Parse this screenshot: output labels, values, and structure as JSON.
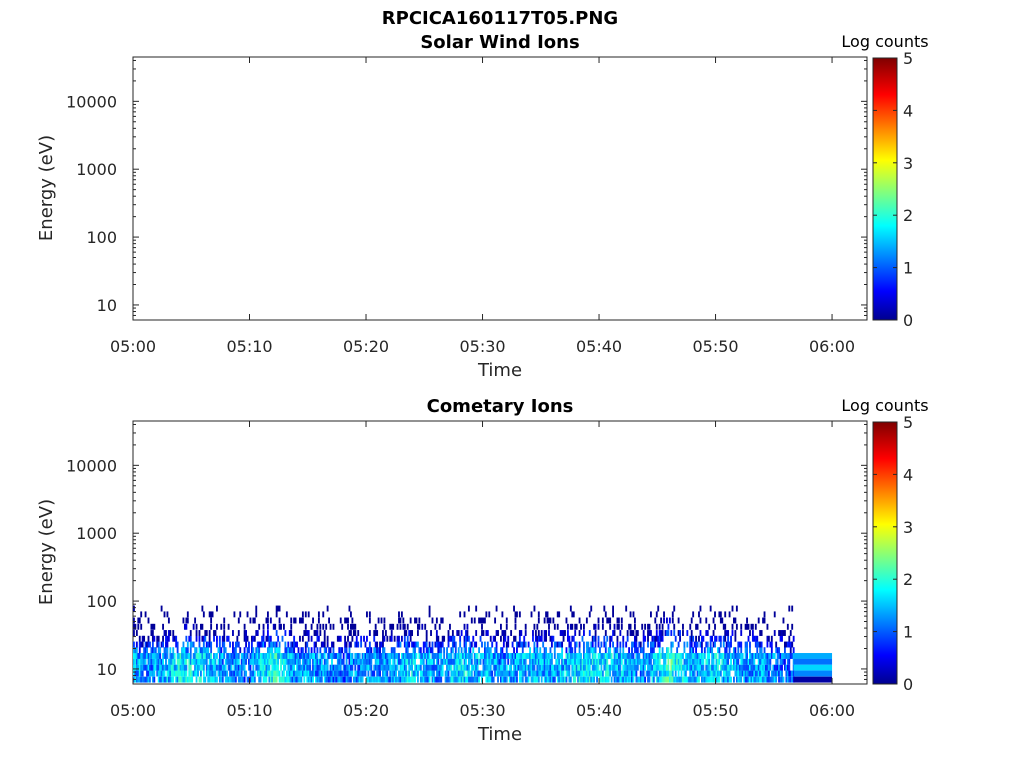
{
  "figure": {
    "title": "RPCICA160117T05.PNG"
  },
  "chart_data": [
    {
      "type": "heatmap",
      "title": "Solar Wind Ions",
      "xlabel": "Time",
      "ylabel": "Energy (eV)",
      "x_ticks": [
        "05:00",
        "05:10",
        "05:20",
        "05:30",
        "05:40",
        "05:50",
        "06:00"
      ],
      "y_ticks": [
        "10",
        "100",
        "1000",
        "10000"
      ],
      "y_scale": "log",
      "xlim_minutes": [
        0,
        63
      ],
      "ylim_eV": [
        6,
        45000
      ],
      "colorbar": {
        "title": "Log counts",
        "ticks": [
          "0",
          "1",
          "2",
          "3",
          "4",
          "5"
        ],
        "range": [
          0,
          5
        ]
      },
      "cells": []
    },
    {
      "type": "heatmap",
      "title": "Cometary Ions",
      "xlabel": "Time",
      "ylabel": "Energy (eV)",
      "x_ticks": [
        "05:00",
        "05:10",
        "05:20",
        "05:30",
        "05:40",
        "05:50",
        "06:00"
      ],
      "y_ticks": [
        "10",
        "100",
        "1000",
        "10000"
      ],
      "y_scale": "log",
      "xlim_minutes": [
        0,
        63
      ],
      "ylim_eV": [
        6,
        45000
      ],
      "colorbar": {
        "title": "Log counts",
        "ticks": [
          "0",
          "1",
          "2",
          "3",
          "4",
          "5"
        ],
        "range": [
          0,
          5
        ]
      },
      "energy_bins_eV": [
        7,
        8.6,
        10.5,
        12.8,
        15.6,
        19,
        23,
        28,
        34,
        42,
        52,
        64,
        78
      ],
      "time_profile": [
        [
          0,
          1.4
        ],
        [
          2,
          1.2
        ],
        [
          4,
          1.7
        ],
        [
          6,
          1.6
        ],
        [
          8,
          1.2
        ],
        [
          10,
          1.1
        ],
        [
          12,
          1.9
        ],
        [
          14,
          1.2
        ],
        [
          16,
          1.3
        ],
        [
          18,
          1.0
        ],
        [
          20,
          1.3
        ],
        [
          22,
          1.2
        ],
        [
          24,
          1.6
        ],
        [
          26,
          1.2
        ],
        [
          28,
          1.6
        ],
        [
          30,
          1.4
        ],
        [
          32,
          1.2
        ],
        [
          34,
          1.5
        ],
        [
          36,
          1.3
        ],
        [
          38,
          1.6
        ],
        [
          40,
          1.7
        ],
        [
          42,
          1.4
        ],
        [
          44,
          1.2
        ],
        [
          46,
          2.0
        ],
        [
          48,
          1.4
        ],
        [
          50,
          1.6
        ],
        [
          52,
          1.3
        ],
        [
          54,
          1.3
        ],
        [
          56,
          1.0
        ]
      ],
      "tail_block": {
        "time_range_minutes": [
          56.7,
          60
        ],
        "rows": [
          {
            "energy_eV": 15.6,
            "log_counts": 1.4
          },
          {
            "energy_eV": 12.8,
            "log_counts": 1.1
          },
          {
            "energy_eV": 10.5,
            "log_counts": 1.6
          },
          {
            "energy_eV": 8.6,
            "log_counts": 1.2
          },
          {
            "energy_eV": 7.0,
            "log_counts": 0.1
          }
        ]
      }
    }
  ]
}
